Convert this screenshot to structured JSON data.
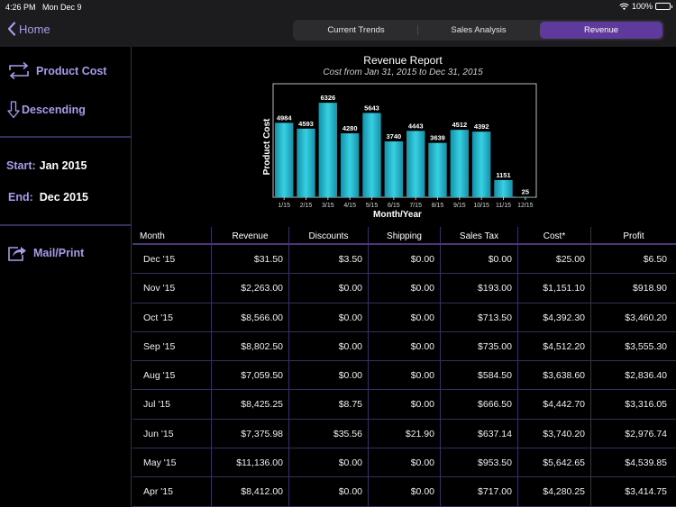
{
  "status_bar": {
    "time": "4:26 PM",
    "date": "Mon Dec 9",
    "battery": "100%",
    "battery_level": 1.0
  },
  "nav": {
    "back_label": "Home",
    "tabs": [
      {
        "label": "Current Trends",
        "active": false
      },
      {
        "label": "Sales Analysis",
        "active": false
      },
      {
        "label": "Revenue",
        "active": true
      }
    ]
  },
  "sidebar": {
    "metric_label": "Product Cost",
    "metric_icon": "swap-arrows-icon",
    "sort_label": "Descending",
    "sort_icon": "arrow-down-icon",
    "start_label": "Start:",
    "start_value": "Jan 2015",
    "end_label": "End:",
    "end_value": "Dec 2015",
    "mail_label": "Mail/Print",
    "mail_icon": "share-icon"
  },
  "colors": {
    "accent": "#a79bea",
    "active_tab": "#5e3a9c",
    "bar": "#1fb5cc",
    "grid": "#3b2c5e"
  },
  "chart_data": {
    "type": "bar",
    "title": "Revenue Report",
    "subtitle": "Cost from Jan 31, 2015 to Dec 31, 2015",
    "xlabel": "Month/Year",
    "ylabel": "Product Cost",
    "categories": [
      "1/15",
      "2/15",
      "3/15",
      "4/15",
      "5/15",
      "6/15",
      "7/15",
      "8/15",
      "9/15",
      "10/15",
      "11/15",
      "12/15"
    ],
    "values": [
      4984,
      4593,
      6326,
      4280,
      5643,
      3740,
      4443,
      3639,
      4512,
      4392,
      1151,
      25
    ],
    "ylim": [
      0,
      7600
    ],
    "grid": false,
    "legend": "none"
  },
  "table": {
    "headers": [
      "Month",
      "Revenue",
      "Discounts",
      "Shipping",
      "Sales Tax",
      "Cost*",
      "Profit"
    ],
    "rows": [
      [
        "Dec '15",
        "$31.50",
        "$3.50",
        "$0.00",
        "$0.00",
        "$25.00",
        "$6.50"
      ],
      [
        "Nov '15",
        "$2,263.00",
        "$0.00",
        "$0.00",
        "$193.00",
        "$1,151.10",
        "$918.90"
      ],
      [
        "Oct '15",
        "$8,566.00",
        "$0.00",
        "$0.00",
        "$713.50",
        "$4,392.30",
        "$3,460.20"
      ],
      [
        "Sep '15",
        "$8,802.50",
        "$0.00",
        "$0.00",
        "$735.00",
        "$4,512.20",
        "$3,555.30"
      ],
      [
        "Aug '15",
        "$7,059.50",
        "$0.00",
        "$0.00",
        "$584.50",
        "$3,638.60",
        "$2,836.40"
      ],
      [
        "Jul '15",
        "$8,425.25",
        "$8.75",
        "$0.00",
        "$666.50",
        "$4,442.70",
        "$3,316.05"
      ],
      [
        "Jun '15",
        "$7,375.98",
        "$35.56",
        "$21.90",
        "$637.14",
        "$3,740.20",
        "$2,976.74"
      ],
      [
        "May '15",
        "$11,136.00",
        "$0.00",
        "$0.00",
        "$953.50",
        "$5,642.65",
        "$4,539.85"
      ],
      [
        "Apr '15",
        "$8,412.00",
        "$0.00",
        "$0.00",
        "$717.00",
        "$4,280.25",
        "$3,414.75"
      ]
    ]
  }
}
